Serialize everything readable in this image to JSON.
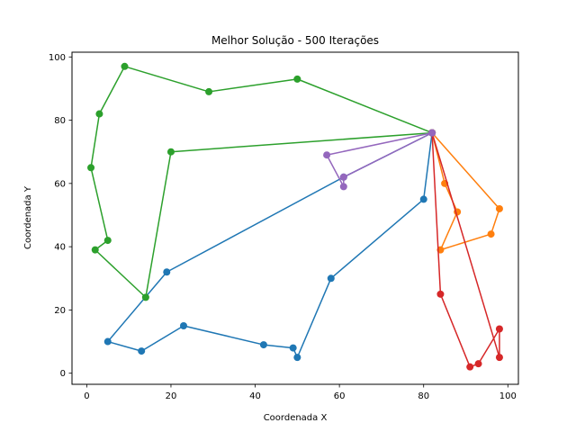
{
  "chart_data": {
    "type": "line",
    "title": "Melhor Solução - 500 Iterações",
    "xlabel": "Coordenada X",
    "ylabel": "Coordenada Y",
    "xlim": [
      -3.5,
      102.5
    ],
    "ylim": [
      -3.5,
      101.5
    ],
    "xticks": [
      0,
      20,
      40,
      60,
      80,
      100
    ],
    "yticks": [
      0,
      20,
      40,
      60,
      80,
      100
    ],
    "grid": false,
    "legend": "none",
    "series": [
      {
        "color": "#1f77b4",
        "points": [
          [
            82,
            76
          ],
          [
            80,
            55
          ],
          [
            58,
            30
          ],
          [
            50,
            5
          ],
          [
            49,
            8
          ],
          [
            42,
            9
          ],
          [
            23,
            15
          ],
          [
            13,
            7
          ],
          [
            5,
            10
          ],
          [
            19,
            32
          ],
          [
            61,
            62
          ],
          [
            82,
            76
          ]
        ]
      },
      {
        "color": "#ff7f0e",
        "points": [
          [
            82,
            76
          ],
          [
            85,
            60
          ],
          [
            88,
            51
          ],
          [
            84,
            39
          ],
          [
            96,
            44
          ],
          [
            98,
            52
          ],
          [
            82,
            76
          ]
        ]
      },
      {
        "color": "#2ca02c",
        "points": [
          [
            82,
            76
          ],
          [
            50,
            93
          ],
          [
            29,
            89
          ],
          [
            9,
            97
          ],
          [
            3,
            82
          ],
          [
            1,
            65
          ],
          [
            5,
            42
          ],
          [
            2,
            39
          ],
          [
            14,
            24
          ],
          [
            20,
            70
          ],
          [
            82,
            76
          ]
        ]
      },
      {
        "color": "#d62728",
        "points": [
          [
            82,
            76
          ],
          [
            84,
            25
          ],
          [
            91,
            2
          ],
          [
            93,
            3
          ],
          [
            98,
            14
          ],
          [
            98,
            5
          ],
          [
            82,
            76
          ]
        ]
      },
      {
        "color": "#9467bd",
        "points": [
          [
            82,
            76
          ],
          [
            57,
            69
          ],
          [
            61,
            59
          ],
          [
            61,
            62
          ],
          [
            82,
            76
          ]
        ]
      }
    ]
  }
}
